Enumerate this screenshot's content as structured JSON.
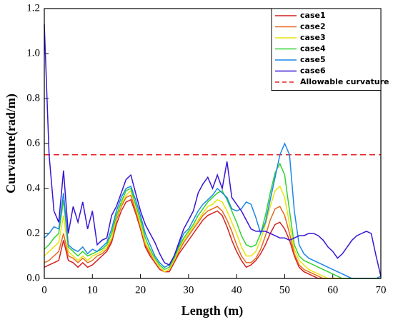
{
  "chart_data": {
    "type": "line",
    "xlabel": "Length (m)",
    "ylabel": "Curvature(rad/m)",
    "x": [
      0,
      1,
      2,
      3,
      4,
      5,
      6,
      7,
      8,
      9,
      10,
      11,
      12,
      13,
      14,
      15,
      16,
      17,
      18,
      19,
      20,
      21,
      22,
      23,
      24,
      25,
      26,
      27,
      28,
      29,
      30,
      31,
      32,
      33,
      34,
      35,
      36,
      37,
      38,
      39,
      40,
      41,
      42,
      43,
      44,
      45,
      46,
      47,
      48,
      49,
      50,
      51,
      52,
      53,
      54,
      55,
      56,
      57,
      58,
      59,
      60,
      61,
      62,
      63,
      64,
      65,
      66,
      67,
      68,
      69,
      70
    ],
    "series": [
      {
        "name": "case1",
        "color": "#d42020",
        "values": [
          0.05,
          0.06,
          0.07,
          0.08,
          0.17,
          0.08,
          0.07,
          0.05,
          0.07,
          0.05,
          0.06,
          0.08,
          0.1,
          0.12,
          0.16,
          0.24,
          0.3,
          0.34,
          0.35,
          0.29,
          0.22,
          0.14,
          0.1,
          0.07,
          0.04,
          0.03,
          0.03,
          0.07,
          0.11,
          0.14,
          0.17,
          0.2,
          0.23,
          0.26,
          0.28,
          0.29,
          0.3,
          0.28,
          0.23,
          0.17,
          0.12,
          0.08,
          0.05,
          0.06,
          0.08,
          0.11,
          0.15,
          0.2,
          0.24,
          0.25,
          0.22,
          0.17,
          0.1,
          0.05,
          0.03,
          0.02,
          0.01,
          0,
          0,
          0,
          0,
          0,
          0,
          0,
          0,
          0,
          0,
          0,
          0,
          0,
          0
        ]
      },
      {
        "name": "case2",
        "color": "#e46a1c",
        "values": [
          0.07,
          0.08,
          0.1,
          0.12,
          0.2,
          0.1,
          0.09,
          0.07,
          0.09,
          0.07,
          0.08,
          0.1,
          0.11,
          0.13,
          0.17,
          0.26,
          0.32,
          0.36,
          0.37,
          0.3,
          0.23,
          0.15,
          0.11,
          0.08,
          0.05,
          0.03,
          0.04,
          0.08,
          0.12,
          0.16,
          0.19,
          0.22,
          0.25,
          0.28,
          0.3,
          0.31,
          0.32,
          0.3,
          0.26,
          0.21,
          0.15,
          0.1,
          0.07,
          0.07,
          0.09,
          0.13,
          0.19,
          0.26,
          0.31,
          0.32,
          0.28,
          0.2,
          0.11,
          0.06,
          0.04,
          0.03,
          0.02,
          0.01,
          0,
          0,
          0,
          0,
          0,
          0,
          0,
          0,
          0,
          0,
          0,
          0,
          0
        ]
      },
      {
        "name": "case3",
        "color": "#e8e410",
        "values": [
          0.1,
          0.12,
          0.14,
          0.16,
          0.28,
          0.12,
          0.1,
          0.08,
          0.1,
          0.08,
          0.1,
          0.11,
          0.12,
          0.14,
          0.18,
          0.27,
          0.33,
          0.37,
          0.39,
          0.32,
          0.24,
          0.16,
          0.12,
          0.08,
          0.05,
          0.03,
          0.04,
          0.08,
          0.13,
          0.17,
          0.2,
          0.23,
          0.26,
          0.29,
          0.32,
          0.33,
          0.35,
          0.34,
          0.3,
          0.25,
          0.2,
          0.14,
          0.1,
          0.1,
          0.12,
          0.17,
          0.24,
          0.32,
          0.39,
          0.41,
          0.36,
          0.24,
          0.13,
          0.08,
          0.06,
          0.04,
          0.03,
          0.02,
          0.01,
          0,
          0,
          0,
          0,
          0,
          0,
          0,
          0,
          0,
          0,
          0,
          0
        ]
      },
      {
        "name": "case4",
        "color": "#32d232",
        "values": [
          0.13,
          0.15,
          0.18,
          0.2,
          0.35,
          0.14,
          0.12,
          0.1,
          0.12,
          0.1,
          0.11,
          0.12,
          0.13,
          0.15,
          0.2,
          0.28,
          0.34,
          0.39,
          0.4,
          0.33,
          0.26,
          0.18,
          0.13,
          0.09,
          0.06,
          0.04,
          0.05,
          0.09,
          0.14,
          0.18,
          0.21,
          0.24,
          0.28,
          0.31,
          0.34,
          0.36,
          0.38,
          0.39,
          0.35,
          0.3,
          0.25,
          0.19,
          0.15,
          0.14,
          0.15,
          0.2,
          0.28,
          0.38,
          0.47,
          0.51,
          0.46,
          0.3,
          0.15,
          0.1,
          0.08,
          0.07,
          0.06,
          0.05,
          0.04,
          0.03,
          0.02,
          0.01,
          0,
          0,
          0,
          0,
          0,
          0,
          0,
          0,
          0
        ]
      },
      {
        "name": "case5",
        "color": "#1c86e8",
        "values": [
          0.18,
          0.2,
          0.23,
          0.22,
          0.38,
          0.15,
          0.13,
          0.12,
          0.14,
          0.11,
          0.13,
          0.12,
          0.14,
          0.16,
          0.22,
          0.3,
          0.36,
          0.4,
          0.41,
          0.35,
          0.28,
          0.2,
          0.15,
          0.1,
          0.07,
          0.05,
          0.06,
          0.1,
          0.15,
          0.2,
          0.22,
          0.26,
          0.3,
          0.33,
          0.35,
          0.37,
          0.4,
          0.38,
          0.36,
          0.31,
          0.3,
          0.31,
          0.34,
          0.33,
          0.27,
          0.2,
          0.25,
          0.35,
          0.45,
          0.55,
          0.6,
          0.55,
          0.3,
          0.15,
          0.11,
          0.09,
          0.08,
          0.07,
          0.06,
          0.05,
          0.04,
          0.03,
          0.02,
          0.01,
          0,
          0,
          0,
          0,
          0,
          0,
          0.01
        ]
      },
      {
        "name": "case6",
        "color": "#3a14d4",
        "values": [
          1.13,
          0.55,
          0.3,
          0.25,
          0.48,
          0.2,
          0.32,
          0.25,
          0.34,
          0.22,
          0.3,
          0.15,
          0.17,
          0.18,
          0.28,
          0.32,
          0.38,
          0.44,
          0.46,
          0.38,
          0.3,
          0.24,
          0.2,
          0.16,
          0.11,
          0.07,
          0.06,
          0.1,
          0.16,
          0.22,
          0.26,
          0.3,
          0.38,
          0.42,
          0.45,
          0.4,
          0.46,
          0.4,
          0.52,
          0.36,
          0.33,
          0.3,
          0.26,
          0.22,
          0.21,
          0.21,
          0.21,
          0.2,
          0.19,
          0.18,
          0.18,
          0.17,
          0.18,
          0.19,
          0.19,
          0.2,
          0.2,
          0.19,
          0.17,
          0.14,
          0.12,
          0.09,
          0.11,
          0.14,
          0.17,
          0.19,
          0.2,
          0.21,
          0.2,
          0.1,
          0.01
        ]
      }
    ],
    "threshold": {
      "name": "Allowable curvature",
      "value": 0.55,
      "color": "#e82020"
    },
    "xlim": [
      0,
      70
    ],
    "xticks": [
      0,
      10,
      20,
      30,
      40,
      50,
      60,
      70
    ],
    "ylim": [
      0,
      1.2
    ],
    "yticks": [
      {
        "value": 0,
        "label": "0.0"
      },
      0.2,
      0.4,
      0.6,
      0.8,
      {
        "value": 1,
        "label": "1.0"
      },
      1.2
    ],
    "legend": "top-right",
    "grid": false
  }
}
